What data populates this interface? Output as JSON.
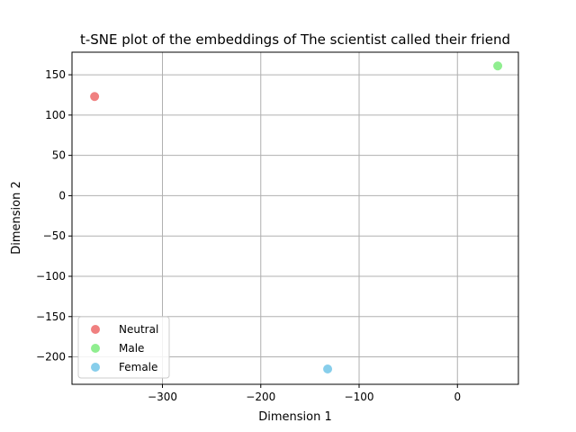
{
  "chart_data": {
    "type": "scatter",
    "title": "t-SNE plot of the embeddings of The scientist called their friend",
    "xlabel": "Dimension 1",
    "ylabel": "Dimension 2",
    "xlim": [
      -392,
      62
    ],
    "ylim": [
      -234,
      178
    ],
    "xticks": [
      -300,
      -200,
      -100,
      0
    ],
    "yticks": [
      150,
      100,
      50,
      0,
      -50,
      -100,
      -150,
      -200
    ],
    "xtick_labels": [
      "−300",
      "−200",
      "−100",
      "0"
    ],
    "ytick_labels": [
      "150",
      "100",
      "50",
      "0",
      "−50",
      "−100",
      "−150",
      "−200"
    ],
    "grid": true,
    "legend_position": "lower-left",
    "series": [
      {
        "name": "Neutral",
        "color": "#f08080",
        "points": [
          {
            "x": -369,
            "y": 123
          }
        ]
      },
      {
        "name": "Male",
        "color": "#90ee90",
        "points": [
          {
            "x": 41,
            "y": 161
          }
        ]
      },
      {
        "name": "Female",
        "color": "#87ceeb",
        "points": [
          {
            "x": -132,
            "y": -215
          }
        ]
      }
    ]
  }
}
